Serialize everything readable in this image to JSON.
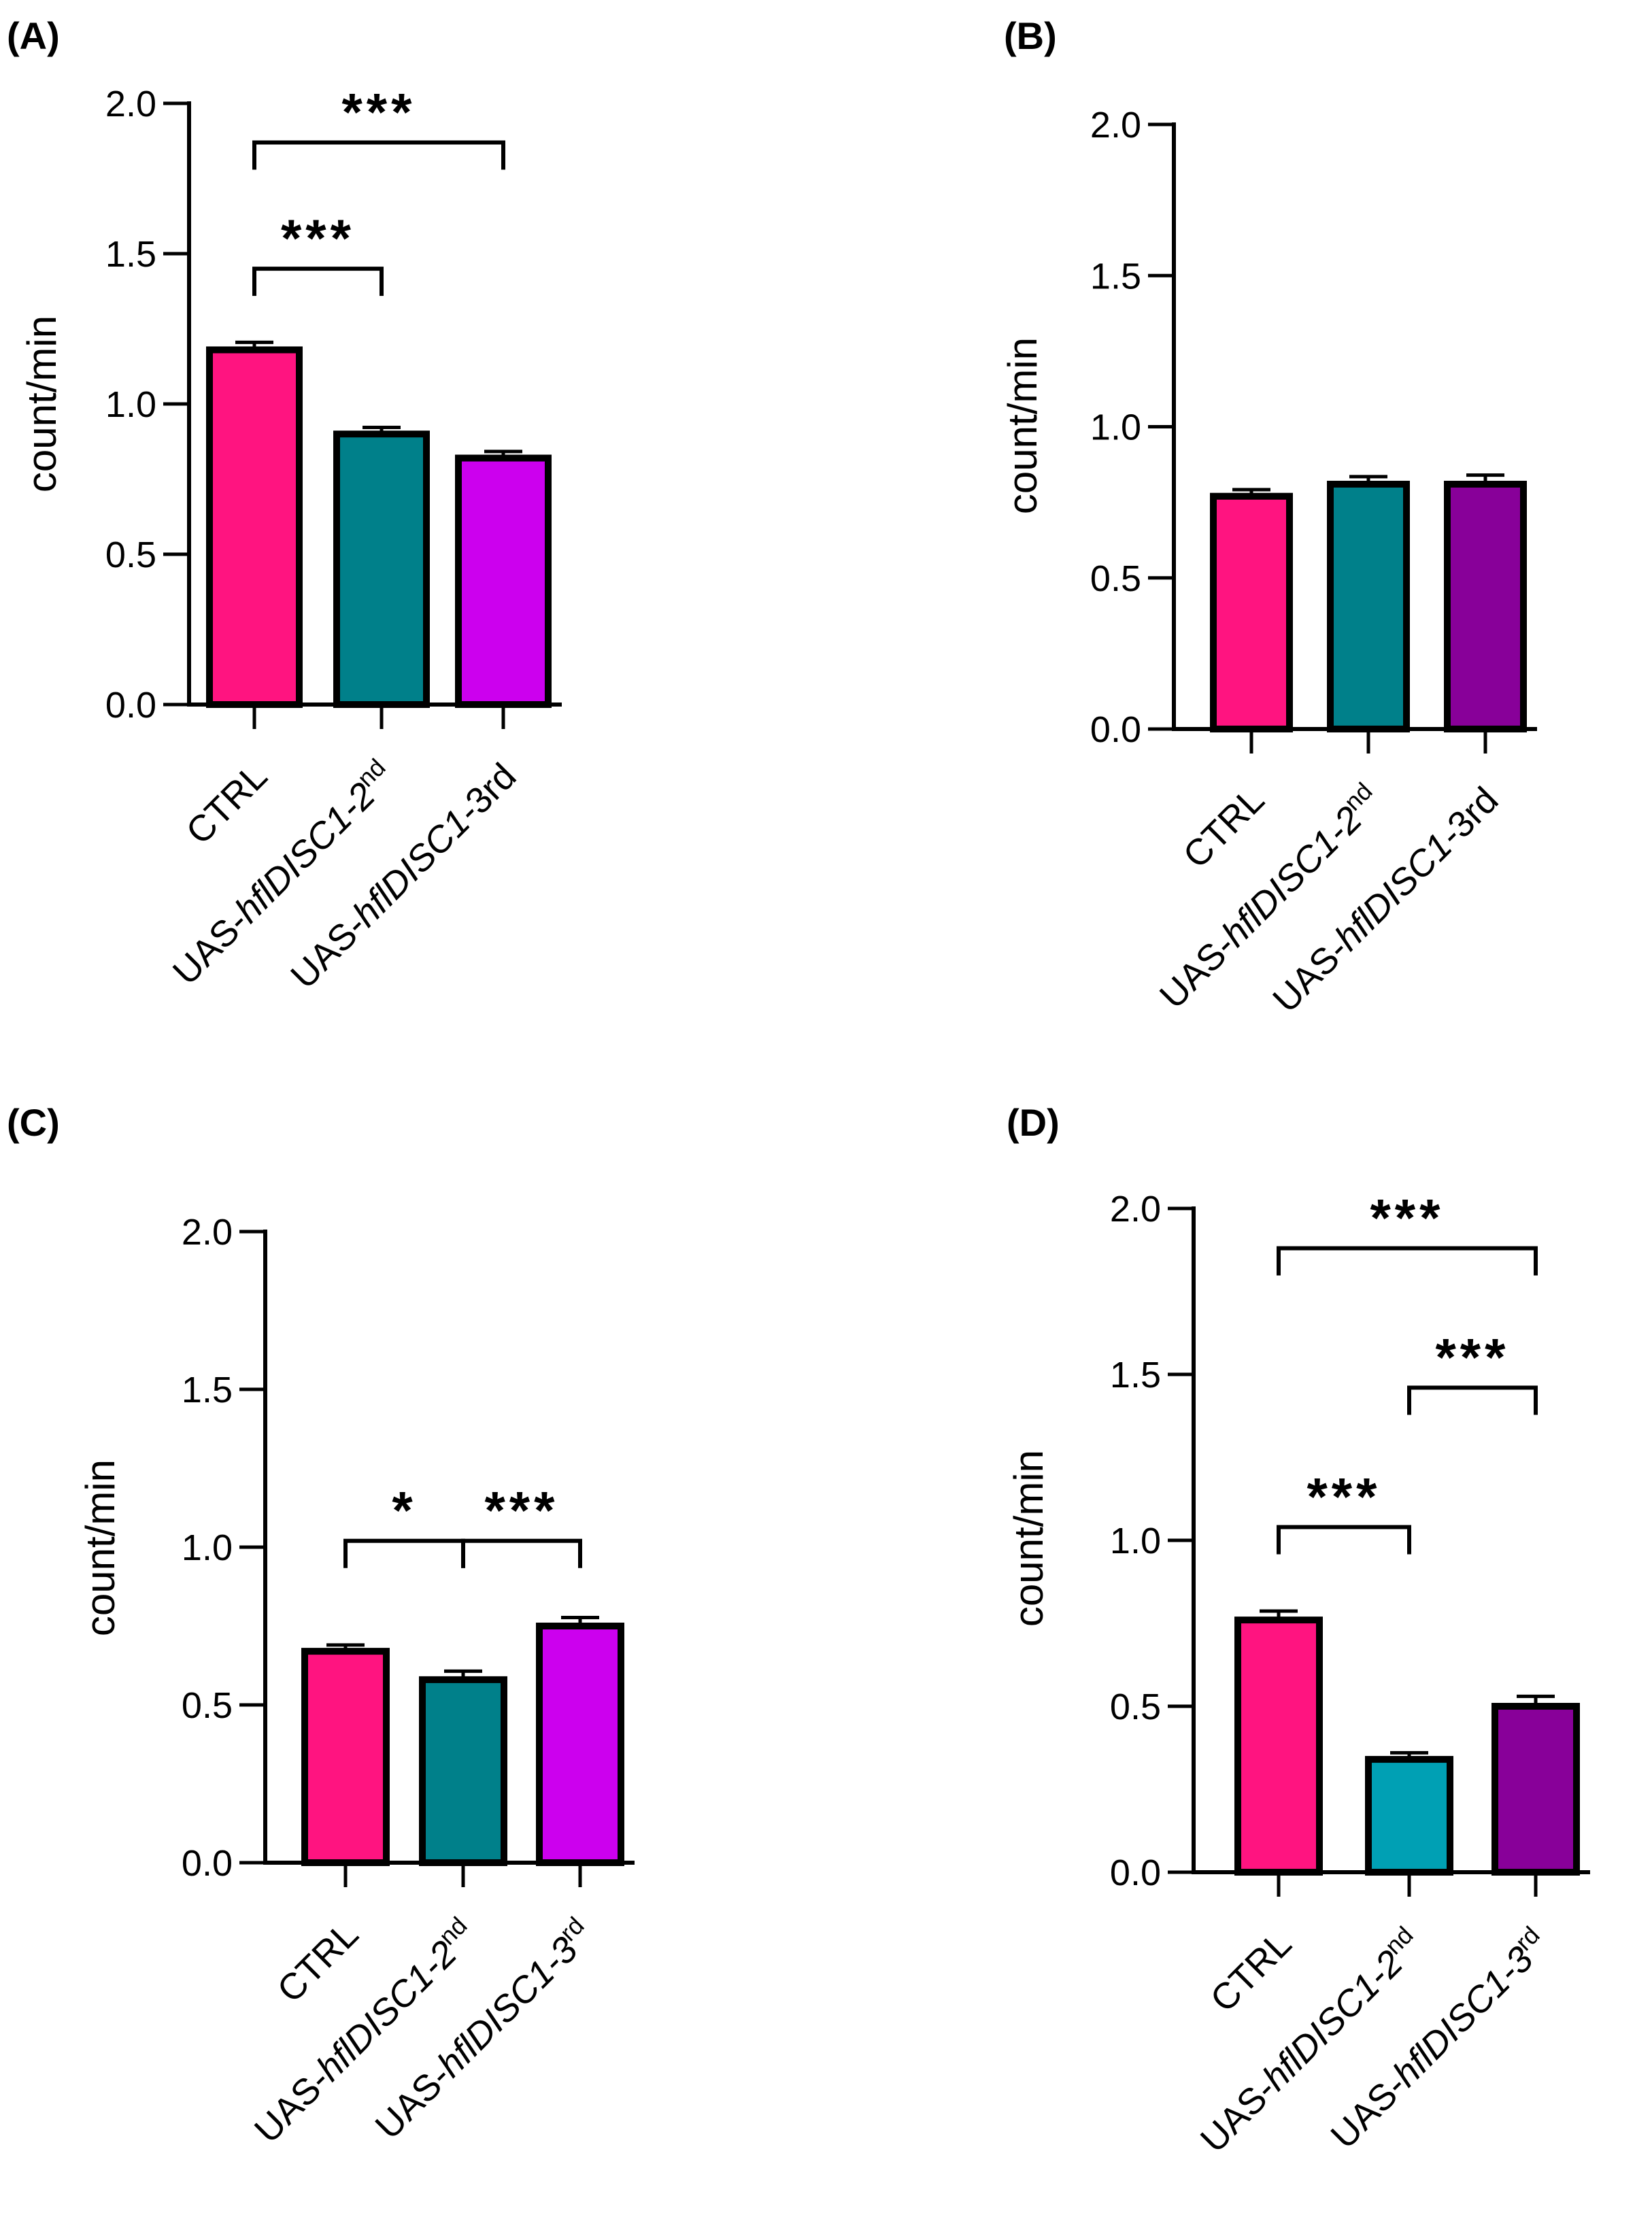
{
  "chart_data": [
    {
      "panel": "(A)",
      "type": "bar",
      "ylabel": "count/min",
      "ylim": [
        0,
        2.0
      ],
      "yticks": [
        "0.0",
        "0.5",
        "1.0",
        "1.5",
        "2.0"
      ],
      "categories": [
        {
          "pre": "CTRL",
          "italic": "",
          "post": "",
          "sup": ""
        },
        {
          "pre": "UAS-",
          "italic": "hflDISC1-2",
          "post": "",
          "sup": "nd"
        },
        {
          "pre": "UAS-",
          "italic": "hflDISC1-",
          "post": "3rd",
          "sup": ""
        }
      ],
      "values": [
        1.18,
        0.9,
        0.82
      ],
      "errors": [
        0.025,
        0.022,
        0.022
      ],
      "colors": [
        "#ff1480",
        "#00808a",
        "#cc00ee"
      ],
      "significance": [
        {
          "from": 0,
          "to": 1,
          "label": "***",
          "y": 1.45
        },
        {
          "from": 0,
          "to": 2,
          "label": "***",
          "y": 1.87
        }
      ]
    },
    {
      "panel": "(B)",
      "type": "bar",
      "ylabel": "count/min",
      "ylim": [
        0,
        2.0
      ],
      "yticks": [
        "0.0",
        "0.5",
        "1.0",
        "1.5",
        "2.0"
      ],
      "categories": [
        {
          "pre": "CTRL",
          "italic": "",
          "post": "",
          "sup": ""
        },
        {
          "pre": "UAS-",
          "italic": "hflDISC1-2",
          "post": "",
          "sup": "nd"
        },
        {
          "pre": "UAS-",
          "italic": "hflDISC1-",
          "post": "3rd",
          "sup": ""
        }
      ],
      "values": [
        0.77,
        0.81,
        0.81
      ],
      "errors": [
        0.022,
        0.025,
        0.03
      ],
      "colors": [
        "#ff1480",
        "#00808a",
        "#880099"
      ],
      "significance": []
    },
    {
      "panel": "(C)",
      "type": "bar",
      "ylabel": "count/min",
      "ylim": [
        0,
        2.0
      ],
      "yticks": [
        "0.0",
        "0.5",
        "1.0",
        "1.5",
        "2.0"
      ],
      "categories": [
        {
          "pre": "CTRL",
          "italic": "",
          "post": "",
          "sup": ""
        },
        {
          "pre": "UAS-",
          "italic": "hflDISC1-2",
          "post": "",
          "sup": "nd"
        },
        {
          "pre": "UAS-",
          "italic": "hflDISC1-3",
          "post": "",
          "sup": "rd"
        }
      ],
      "values": [
        0.67,
        0.58,
        0.75
      ],
      "errors": [
        0.02,
        0.027,
        0.027
      ],
      "colors": [
        "#ff1480",
        "#00808a",
        "#cc00ee"
      ],
      "significance": [
        {
          "from": 0,
          "to": 1,
          "label": "*",
          "y": 1.02
        },
        {
          "from": 1,
          "to": 2,
          "label": "***",
          "y": 1.02
        }
      ]
    },
    {
      "panel": "(D)",
      "type": "bar",
      "ylabel": "count/min",
      "ylim": [
        0,
        2.0
      ],
      "yticks": [
        "0.0",
        "0.5",
        "1.0",
        "1.5",
        "2.0"
      ],
      "categories": [
        {
          "pre": "CTRL",
          "italic": "",
          "post": "",
          "sup": ""
        },
        {
          "pre": "UAS-",
          "italic": "hflDISC1-2",
          "post": "",
          "sup": "nd"
        },
        {
          "pre": "UAS-",
          "italic": "hflDISC1-3",
          "post": "",
          "sup": "rd"
        }
      ],
      "values": [
        0.76,
        0.34,
        0.5
      ],
      "errors": [
        0.027,
        0.02,
        0.03
      ],
      "colors": [
        "#ff1480",
        "#00a0b4",
        "#880099"
      ],
      "significance": [
        {
          "from": 0,
          "to": 1,
          "label": "***",
          "y": 1.04
        },
        {
          "from": 1,
          "to": 2,
          "label": "***",
          "y": 1.46
        },
        {
          "from": 0,
          "to": 2,
          "label": "***",
          "y": 1.88
        }
      ]
    }
  ]
}
